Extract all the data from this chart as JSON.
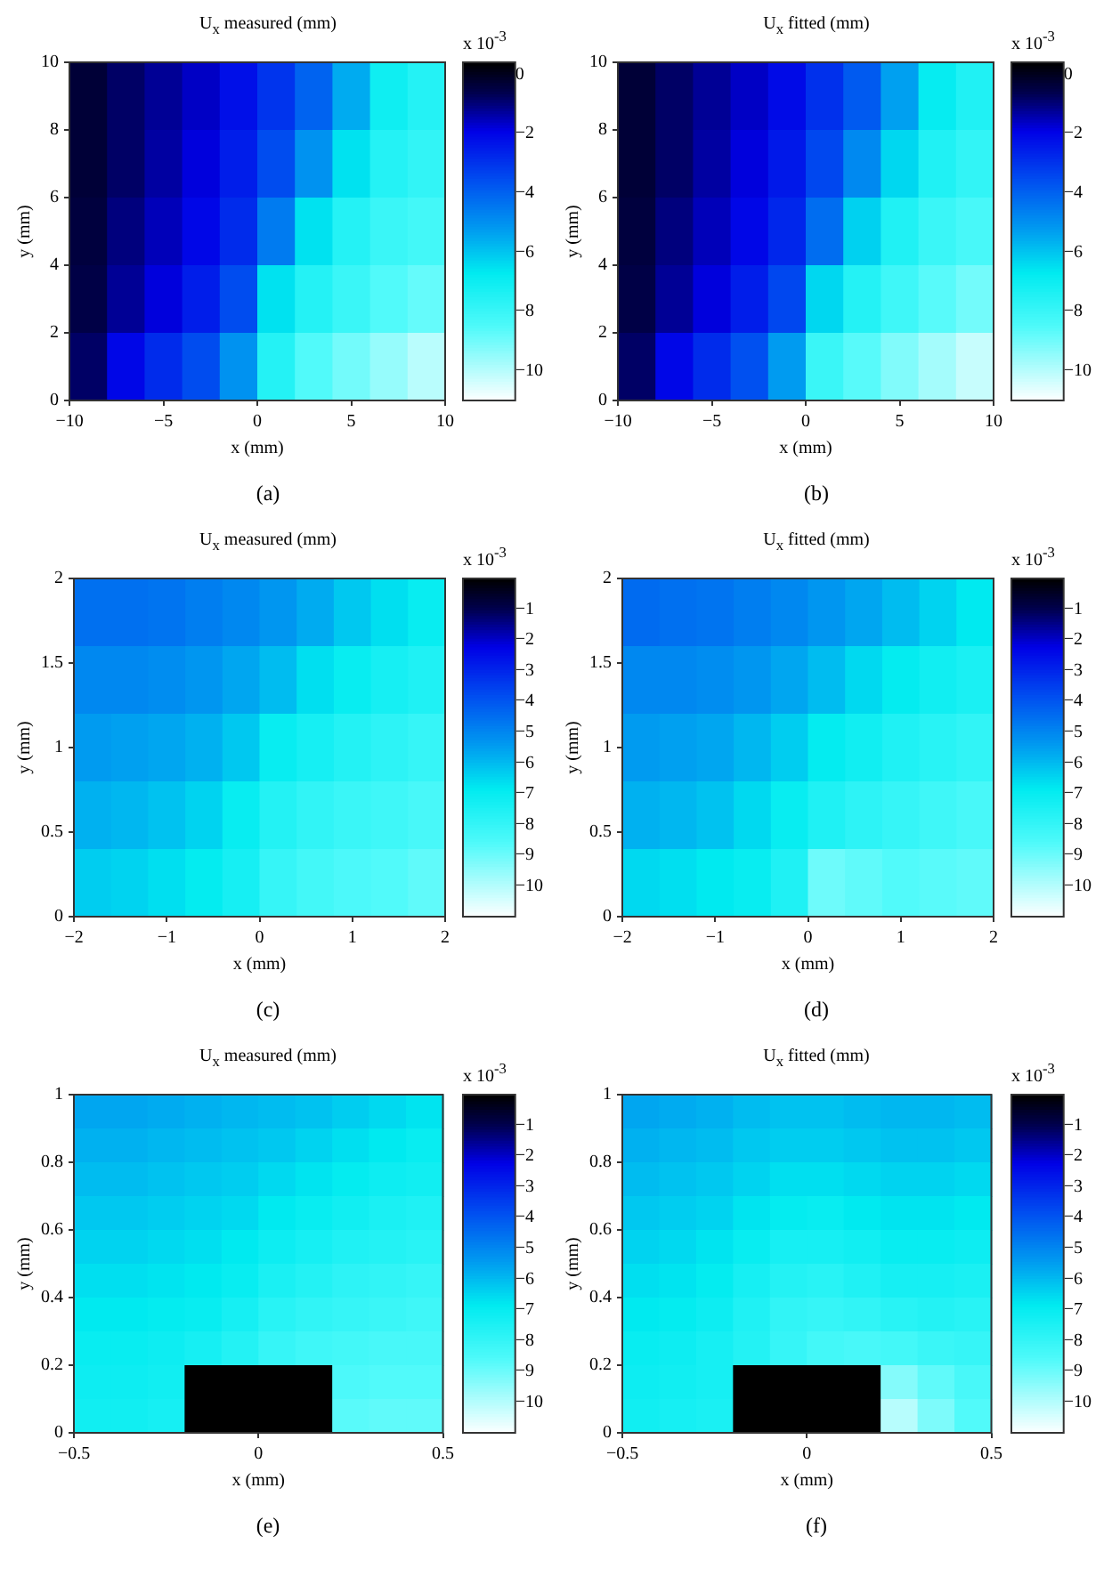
{
  "chart_data": [
    {
      "type": "heatmap",
      "title": "U$_{x}$ measured (mm)",
      "xlabel": "x (mm)",
      "ylabel": "y (mm)",
      "clabel": "x 10$^{-3}$",
      "annotations": [
        "(a)"
      ],
      "xlim": [
        -10,
        10
      ],
      "xticks": [
        -10,
        -5,
        0,
        5,
        10
      ],
      "ylim": [
        0,
        10
      ],
      "yticks": [
        0,
        2,
        4,
        6,
        8,
        10
      ],
      "clim": [
        -11,
        0.4
      ],
      "cticks": [
        0,
        -2,
        -4,
        -6,
        -8,
        -10
      ],
      "cells": [
        [
          -0.3,
          -0.8,
          -1.2,
          -1.6,
          -2.2,
          -3,
          -4,
          -5.5,
          -7,
          -7.5
        ],
        [
          -0.3,
          -0.8,
          -1.3,
          -1.8,
          -2.5,
          -3.5,
          -5,
          -6.5,
          -7.5,
          -7.8
        ],
        [
          -0.4,
          -1,
          -1.5,
          -2,
          -2.8,
          -4.5,
          -6.5,
          -7.5,
          -8,
          -8.2
        ],
        [
          -0.5,
          -1.2,
          -1.8,
          -2.5,
          -3.5,
          -6.5,
          -7.5,
          -8,
          -8.5,
          -8.8
        ],
        [
          -0.8,
          -2,
          -2.8,
          -3.5,
          -5,
          -7.5,
          -8.5,
          -9,
          -9.5,
          -10
        ]
      ]
    },
    {
      "type": "heatmap",
      "title": "U$_{x}$ fitted (mm)",
      "xlabel": "x (mm)",
      "ylabel": "y (mm)",
      "clabel": "x 10$^{-3}$",
      "annotations": [
        "(b)"
      ],
      "xlim": [
        -10,
        10
      ],
      "xticks": [
        -10,
        -5,
        0,
        5,
        10
      ],
      "ylim": [
        0,
        10
      ],
      "yticks": [
        0,
        2,
        4,
        6,
        8,
        10
      ],
      "clim": [
        -11,
        0.4
      ],
      "cticks": [
        0,
        -2,
        -4,
        -6,
        -8,
        -10
      ],
      "cells": [
        [
          -0.3,
          -0.8,
          -1.2,
          -1.6,
          -2.1,
          -2.9,
          -3.8,
          -5.3,
          -6.8,
          -7.4
        ],
        [
          -0.3,
          -0.8,
          -1.3,
          -1.8,
          -2.4,
          -3.4,
          -4.8,
          -6.3,
          -7.4,
          -7.8
        ],
        [
          -0.4,
          -1,
          -1.5,
          -2,
          -2.7,
          -4.2,
          -6.2,
          -7.4,
          -8,
          -8.3
        ],
        [
          -0.5,
          -1.2,
          -1.8,
          -2.5,
          -3.4,
          -6.3,
          -7.5,
          -8.1,
          -8.6,
          -9
        ],
        [
          -0.8,
          -2,
          -2.8,
          -3.6,
          -5.2,
          -8,
          -8.6,
          -9.2,
          -9.7,
          -10.2
        ]
      ]
    },
    {
      "type": "heatmap",
      "title": "U$_{x}$ measured (mm)",
      "xlabel": "x (mm)",
      "ylabel": "y (mm)",
      "clabel": "x 10$^{-3}$",
      "annotations": [
        "(c)"
      ],
      "xlim": [
        -2,
        2
      ],
      "xticks": [
        -2,
        -1,
        0,
        1,
        2
      ],
      "ylim": [
        0,
        2
      ],
      "yticks": [
        0,
        0.5,
        1,
        1.5,
        2
      ],
      "clim": [
        -11,
        0
      ],
      "cticks": [
        -1,
        -2,
        -3,
        -4,
        -5,
        -6,
        -7,
        -8,
        -9,
        -10
      ],
      "cells": [
        [
          -4.5,
          -4.5,
          -4.6,
          -4.8,
          -5,
          -5.3,
          -5.7,
          -6.2,
          -6.6,
          -7
        ],
        [
          -5,
          -5,
          -5.1,
          -5.3,
          -5.6,
          -6,
          -6.6,
          -7,
          -7.3,
          -7.5
        ],
        [
          -5.4,
          -5.5,
          -5.6,
          -5.8,
          -6.2,
          -7,
          -7.3,
          -7.6,
          -7.8,
          -8
        ],
        [
          -5.8,
          -5.9,
          -6.1,
          -6.4,
          -7,
          -7.6,
          -7.9,
          -8.1,
          -8.2,
          -8.4
        ],
        [
          -6.3,
          -6.4,
          -6.6,
          -6.9,
          -7.3,
          -8,
          -8.3,
          -8.5,
          -8.6,
          -8.8
        ]
      ]
    },
    {
      "type": "heatmap",
      "title": "U$_{x}$ fitted (mm)",
      "xlabel": "x (mm)",
      "ylabel": "y (mm)",
      "clabel": "x 10$^{-3}$",
      "annotations": [
        "(d)"
      ],
      "xlim": [
        -2,
        2
      ],
      "xticks": [
        -2,
        -1,
        0,
        1,
        2
      ],
      "ylim": [
        0,
        2
      ],
      "yticks": [
        0,
        0.5,
        1,
        1.5,
        2
      ],
      "clim": [
        -11,
        0
      ],
      "cticks": [
        -1,
        -2,
        -3,
        -4,
        -5,
        -6,
        -7,
        -8,
        -9,
        -10
      ],
      "cells": [
        [
          -4.4,
          -4.5,
          -4.6,
          -4.8,
          -5,
          -5.3,
          -5.6,
          -6,
          -6.4,
          -6.8
        ],
        [
          -5,
          -5,
          -5.1,
          -5.3,
          -5.6,
          -6,
          -6.5,
          -6.9,
          -7.2,
          -7.4
        ],
        [
          -5.4,
          -5.5,
          -5.6,
          -5.9,
          -6.3,
          -6.9,
          -7.2,
          -7.5,
          -7.7,
          -7.9
        ],
        [
          -5.8,
          -5.9,
          -6.1,
          -6.5,
          -7,
          -7.5,
          -7.8,
          -8,
          -8.2,
          -8.4
        ],
        [
          -6.5,
          -6.6,
          -6.8,
          -7,
          -7.5,
          -9,
          -8.8,
          -8.6,
          -8.7,
          -8.8
        ]
      ]
    },
    {
      "type": "heatmap",
      "title": "U$_{x}$ measured (mm)",
      "xlabel": "x (mm)",
      "ylabel": "y (mm)",
      "clabel": "x 10$^{-3}$",
      "annotations": [
        "(e)"
      ],
      "xlim": [
        -0.5,
        0.5
      ],
      "xticks": [
        -0.5,
        0,
        0.5
      ],
      "ylim": [
        0,
        1
      ],
      "yticks": [
        0,
        0.2,
        0.4,
        0.6,
        0.8,
        1
      ],
      "clim": [
        -11,
        0
      ],
      "cticks": [
        -1,
        -2,
        -3,
        -4,
        -5,
        -6,
        -7,
        -8,
        -9,
        -10
      ],
      "cells": [
        [
          -5.6,
          -5.6,
          -5.7,
          -5.8,
          -5.9,
          -6,
          -6.1,
          -6.3,
          -6.5,
          -6.7
        ],
        [
          -5.8,
          -5.8,
          -5.9,
          -6,
          -6.1,
          -6.2,
          -6.4,
          -6.6,
          -6.8,
          -7
        ],
        [
          -6,
          -6,
          -6.1,
          -6.2,
          -6.3,
          -6.5,
          -6.7,
          -6.9,
          -7.1,
          -7.2
        ],
        [
          -6.2,
          -6.2,
          -6.3,
          -6.4,
          -6.5,
          -6.8,
          -7,
          -7.2,
          -7.4,
          -7.5
        ],
        [
          -6.4,
          -6.4,
          -6.5,
          -6.6,
          -6.8,
          -7.1,
          -7.3,
          -7.5,
          -7.6,
          -7.7
        ],
        [
          -6.6,
          -6.6,
          -6.7,
          -6.8,
          -7,
          -7.4,
          -7.6,
          -7.8,
          -7.9,
          -8
        ],
        [
          -6.8,
          -6.8,
          -6.9,
          -7,
          -7.3,
          -7.7,
          -7.9,
          -8,
          -8.1,
          -8.2
        ],
        [
          -7,
          -7,
          -7.1,
          -7.3,
          -7.6,
          -8,
          -8.2,
          -8.3,
          -8.4,
          -8.4
        ],
        [
          -7.1,
          -7.1,
          -7.2,
          0,
          0,
          0,
          0,
          -8.5,
          -8.6,
          -8.6
        ],
        [
          -7.2,
          -7.2,
          -7.3,
          0,
          0,
          0,
          0,
          -8.7,
          -8.8,
          -8.8
        ]
      ]
    },
    {
      "type": "heatmap",
      "title": "U$_{x}$ fitted (mm)",
      "xlabel": "x (mm)",
      "ylabel": "y (mm)",
      "clabel": "x 10$^{-3}$",
      "annotations": [
        "(f)"
      ],
      "xlim": [
        -0.5,
        0.5
      ],
      "xticks": [
        -0.5,
        0,
        0.5
      ],
      "ylim": [
        0,
        1
      ],
      "yticks": [
        0,
        0.2,
        0.4,
        0.6,
        0.8,
        1
      ],
      "clim": [
        -11,
        0
      ],
      "cticks": [
        -1,
        -2,
        -3,
        -4,
        -5,
        -6,
        -7,
        -8,
        -9,
        -10
      ],
      "cells": [
        [
          -5.6,
          -5.7,
          -5.8,
          -6,
          -6.1,
          -6.1,
          -6,
          -5.9,
          -5.9,
          -6
        ],
        [
          -5.8,
          -5.9,
          -6,
          -6.2,
          -6.3,
          -6.3,
          -6.2,
          -6.1,
          -6.1,
          -6.2
        ],
        [
          -6,
          -6.1,
          -6.2,
          -6.4,
          -6.6,
          -6.6,
          -6.5,
          -6.4,
          -6.4,
          -6.5
        ],
        [
          -6.2,
          -6.3,
          -6.4,
          -6.7,
          -6.9,
          -7,
          -6.8,
          -6.7,
          -6.7,
          -6.8
        ],
        [
          -6.4,
          -6.5,
          -6.7,
          -7,
          -7.3,
          -7.3,
          -7.2,
          -7,
          -7,
          -7.1
        ],
        [
          -6.6,
          -6.7,
          -6.9,
          -7.3,
          -7.6,
          -7.7,
          -7.5,
          -7.3,
          -7.3,
          -7.4
        ],
        [
          -6.8,
          -6.9,
          -7.1,
          -7.5,
          -7.9,
          -8,
          -7.9,
          -7.7,
          -7.6,
          -7.7
        ],
        [
          -7,
          -7.1,
          -7.3,
          -7.6,
          -8,
          -8.3,
          -8.4,
          -8.3,
          -8.1,
          -8
        ],
        [
          -7.1,
          -7.2,
          -7.3,
          0,
          0,
          0,
          0,
          -9.3,
          -8.8,
          -8.4
        ],
        [
          -7.2,
          -7.3,
          -7.4,
          0,
          0,
          0,
          0,
          -10,
          -9.2,
          -8.6
        ]
      ]
    }
  ]
}
